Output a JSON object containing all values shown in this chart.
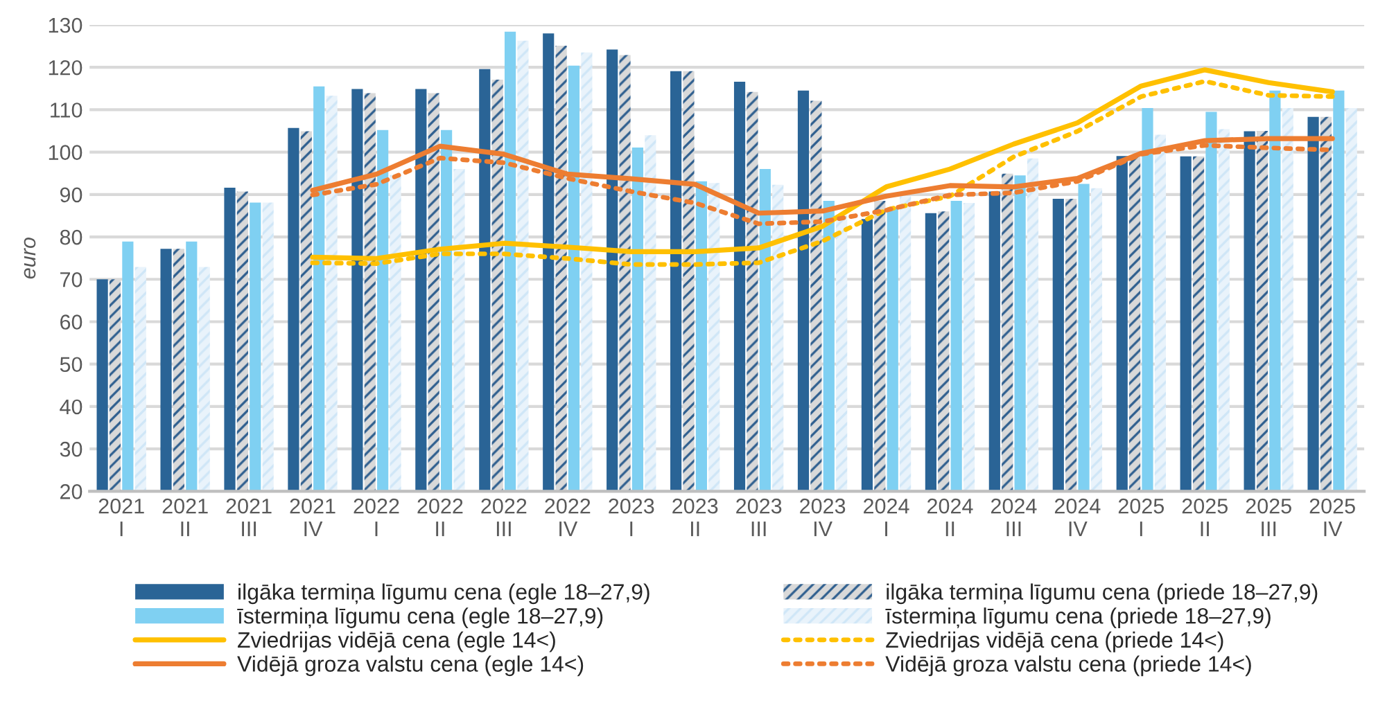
{
  "chart_data": {
    "type": "bar",
    "ylabel": "euro",
    "categories": [
      "2021\nI",
      "2021\nII",
      "2021\nIII",
      "2021\nIV",
      "2022\nI",
      "2022\nII",
      "2022\nIII",
      "2022\nIV",
      "2023\nI",
      "2023\nII",
      "2023\nIII",
      "2023\nIV",
      "2024\nI",
      "2024\nII",
      "2024\nIII",
      "2024\nIV",
      "2025\nI",
      "2025\nII",
      "2025\nIII",
      "2025\nIV"
    ],
    "series": [
      {
        "name": "ilgāka termiņa līgumu cena (egle 18–27,9)",
        "color": "#2a6496",
        "values": [
          70,
          77.2,
          91.6,
          105.7,
          114.9,
          114.9,
          119.6,
          128,
          124.2,
          119.1,
          116.6,
          114.5,
          84.2,
          85.6,
          90.7,
          89,
          99.1,
          99,
          104.9,
          108.3
        ]
      },
      {
        "name": "ilgāka termiņa līgumu cena (priede 18–27,9)",
        "color": "#2f5f8f",
        "values": [
          70,
          77.2,
          90.7,
          104.9,
          113.9,
          113.9,
          117.1,
          125.1,
          122.9,
          119.1,
          114.2,
          112.1,
          88.5,
          86,
          94.9,
          89,
          99,
          99,
          105,
          108.3
        ]
      },
      {
        "name": "īstermiņa līgumu cena (egle 18–27,9)",
        "color": "#7fd0f2",
        "values": [
          78.9,
          78.9,
          88.1,
          115.5,
          105.2,
          105.2,
          128.4,
          120.4,
          101.1,
          93.1,
          96,
          88.5,
          86.9,
          88.5,
          94.5,
          92.5,
          110.4,
          109.5,
          114.5,
          114.5
        ]
      },
      {
        "name": "īstermiņa līgumu cena (priede 18–27,9)",
        "color": "#cfe6f7",
        "values": [
          72.9,
          72.9,
          88.1,
          113.3,
          94.6,
          96,
          126.3,
          123.5,
          104,
          92.7,
          92.3,
          85,
          89.6,
          88,
          98.5,
          91.5,
          104.1,
          105.4,
          110.4,
          110.4
        ]
      },
      {
        "name": "Zviedrijas vidējā cena (egle 14<)",
        "type": "line",
        "line_style": "solid",
        "color": "#ffc000",
        "values": [
          null,
          null,
          null,
          75.2,
          74.9,
          77.1,
          78.5,
          77.6,
          76.5,
          76.5,
          77.4,
          82.5,
          91.8,
          96,
          101.9,
          106.9,
          115.6,
          119.4,
          116.4,
          114.2
        ]
      },
      {
        "name": "Zviedrijas vidējā cena (priede 14<)",
        "type": "line",
        "line_style": "dotted",
        "color": "#ffc000",
        "values": [
          null,
          null,
          null,
          73.9,
          73.7,
          76,
          76,
          74.9,
          73.5,
          73.5,
          73.9,
          79,
          86.4,
          89.6,
          98.9,
          104.9,
          113.1,
          116.7,
          113.4,
          113.1
        ]
      },
      {
        "name": "Vidējā groza valstu cena (egle 14<)",
        "type": "line",
        "line_style": "solid",
        "color": "#ed7d31",
        "values": [
          null,
          null,
          null,
          91,
          94.8,
          101.4,
          99.5,
          94.8,
          93.7,
          92.4,
          85.6,
          86.1,
          89.6,
          92.1,
          91.8,
          93.8,
          99.7,
          102.7,
          103.2,
          103.2
        ]
      },
      {
        "name": "Vidējā groza valstu cena (priede 14<)",
        "type": "line",
        "line_style": "dotted",
        "color": "#ed7d31",
        "values": [
          null,
          null,
          null,
          89.9,
          92.4,
          98.6,
          97.5,
          93.8,
          90.7,
          88,
          83.1,
          83.6,
          86.3,
          89.9,
          90.4,
          93.1,
          99.5,
          101.6,
          101,
          100.5
        ]
      }
    ],
    "ylim": [
      20,
      130
    ],
    "yticks": [
      20,
      30,
      40,
      50,
      60,
      70,
      80,
      90,
      100,
      110,
      120,
      130
    ],
    "grid": "y",
    "legend": "bottom",
    "marker": "none"
  }
}
